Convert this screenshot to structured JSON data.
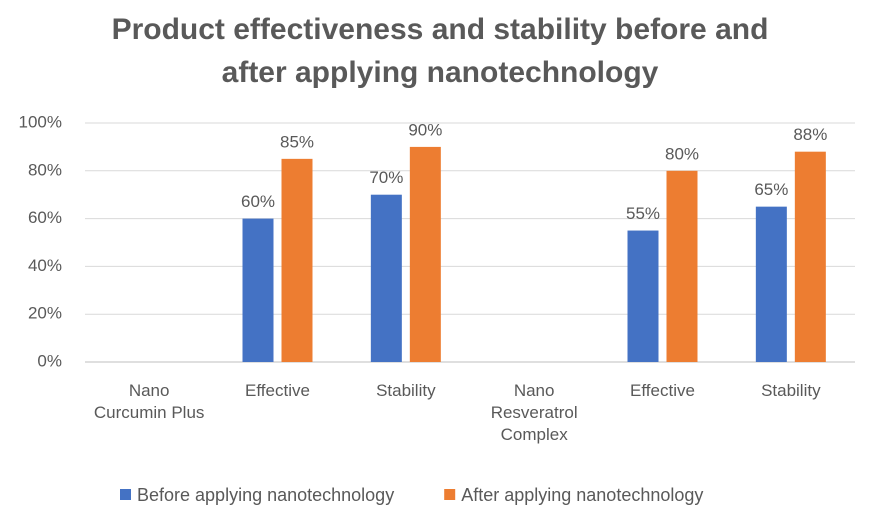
{
  "chart_data": {
    "type": "bar",
    "title": "Product effectiveness and stability before and after applying nanotechnology",
    "categories": [
      "Nano Curcumin Plus",
      "Effective",
      "Stability",
      "Nano Resveratrol Complex",
      "Effective",
      "Stability"
    ],
    "series": [
      {
        "name": "Before applying nanotechnology",
        "color": "#4472c4",
        "values": [
          null,
          60,
          70,
          null,
          55,
          65
        ],
        "value_labels": [
          null,
          "60%",
          "70%",
          null,
          "55%",
          "65%"
        ]
      },
      {
        "name": "After applying nanotechnology",
        "color": "#ed7d31",
        "values": [
          null,
          85,
          90,
          null,
          80,
          88
        ],
        "value_labels": [
          null,
          "85%",
          "90%",
          null,
          "80%",
          "88%"
        ]
      }
    ],
    "ylim": [
      0,
      100
    ],
    "yticks": [
      {
        "value": 0,
        "label": "0%"
      },
      {
        "value": 20,
        "label": "20%"
      },
      {
        "value": 40,
        "label": "40%"
      },
      {
        "value": 60,
        "label": "60%"
      },
      {
        "value": 80,
        "label": "80%"
      },
      {
        "value": 100,
        "label": "100%"
      }
    ],
    "grid": true,
    "legend": "bottom"
  }
}
